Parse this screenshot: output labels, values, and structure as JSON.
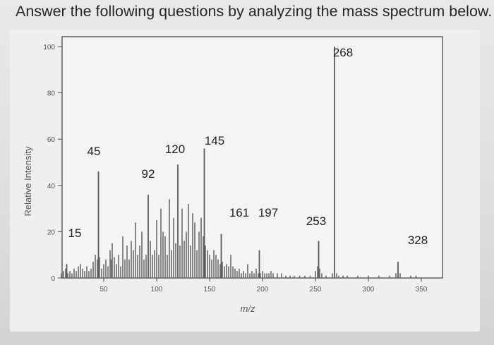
{
  "question": "Answer the following questions by analyzing the mass spectrum below.",
  "chart_data": {
    "type": "bar",
    "title": "",
    "xlabel": "m/z",
    "ylabel": "Relative Intensity",
    "xlim": [
      0,
      360
    ],
    "ylim": [
      0,
      100
    ],
    "x_ticks": [
      50,
      100,
      150,
      200,
      250,
      300,
      350
    ],
    "y_ticks": [
      0,
      20,
      40,
      60,
      80,
      100
    ],
    "labeled_peaks": [
      {
        "mz": 15,
        "label": "15",
        "intensity": 6
      },
      {
        "mz": 45,
        "label": "45",
        "intensity": 46
      },
      {
        "mz": 92,
        "label": "92",
        "intensity": 36
      },
      {
        "mz": 120,
        "label": "120",
        "intensity": 49
      },
      {
        "mz": 145,
        "label": "145",
        "intensity": 56
      },
      {
        "mz": 161,
        "label": "161",
        "intensity": 19
      },
      {
        "mz": 197,
        "label": "197",
        "intensity": 12
      },
      {
        "mz": 253,
        "label": "253",
        "intensity": 16
      },
      {
        "mz": 268,
        "label": "268",
        "intensity": 100
      },
      {
        "mz": 328,
        "label": "328",
        "intensity": 7
      }
    ],
    "minor_peaks": [
      [
        10,
        2
      ],
      [
        12,
        3
      ],
      [
        14,
        4
      ],
      [
        16,
        2
      ],
      [
        18,
        3
      ],
      [
        20,
        2
      ],
      [
        22,
        4
      ],
      [
        24,
        3
      ],
      [
        26,
        5
      ],
      [
        28,
        6
      ],
      [
        30,
        4
      ],
      [
        32,
        3
      ],
      [
        34,
        5
      ],
      [
        36,
        3
      ],
      [
        38,
        4
      ],
      [
        40,
        7
      ],
      [
        42,
        10
      ],
      [
        44,
        8
      ],
      [
        46,
        9
      ],
      [
        48,
        4
      ],
      [
        50,
        6
      ],
      [
        52,
        8
      ],
      [
        54,
        5
      ],
      [
        56,
        12
      ],
      [
        57,
        8
      ],
      [
        58,
        15
      ],
      [
        60,
        9
      ],
      [
        62,
        6
      ],
      [
        64,
        10
      ],
      [
        66,
        5
      ],
      [
        68,
        18
      ],
      [
        70,
        8
      ],
      [
        72,
        14
      ],
      [
        74,
        8
      ],
      [
        76,
        16
      ],
      [
        78,
        12
      ],
      [
        80,
        24
      ],
      [
        82,
        10
      ],
      [
        84,
        14
      ],
      [
        86,
        20
      ],
      [
        88,
        8
      ],
      [
        90,
        10
      ],
      [
        94,
        16
      ],
      [
        96,
        10
      ],
      [
        98,
        12
      ],
      [
        100,
        25
      ],
      [
        102,
        10
      ],
      [
        104,
        30
      ],
      [
        106,
        20
      ],
      [
        108,
        18
      ],
      [
        110,
        10
      ],
      [
        112,
        34
      ],
      [
        114,
        12
      ],
      [
        116,
        26
      ],
      [
        118,
        15
      ],
      [
        122,
        14
      ],
      [
        124,
        30
      ],
      [
        126,
        16
      ],
      [
        128,
        20
      ],
      [
        130,
        32
      ],
      [
        132,
        14
      ],
      [
        134,
        28
      ],
      [
        136,
        24
      ],
      [
        138,
        12
      ],
      [
        140,
        20
      ],
      [
        142,
        26
      ],
      [
        144,
        18
      ],
      [
        146,
        14
      ],
      [
        148,
        12
      ],
      [
        150,
        10
      ],
      [
        152,
        8
      ],
      [
        154,
        12
      ],
      [
        156,
        10
      ],
      [
        158,
        8
      ],
      [
        160,
        6
      ],
      [
        162,
        7
      ],
      [
        164,
        5
      ],
      [
        166,
        6
      ],
      [
        168,
        5
      ],
      [
        170,
        10
      ],
      [
        172,
        5
      ],
      [
        174,
        4
      ],
      [
        176,
        3
      ],
      [
        178,
        4
      ],
      [
        180,
        2
      ],
      [
        182,
        3
      ],
      [
        184,
        2
      ],
      [
        186,
        6
      ],
      [
        188,
        2
      ],
      [
        190,
        3
      ],
      [
        192,
        2
      ],
      [
        194,
        4
      ],
      [
        196,
        2
      ],
      [
        198,
        2
      ],
      [
        200,
        3
      ],
      [
        202,
        2
      ],
      [
        204,
        2
      ],
      [
        206,
        2
      ],
      [
        208,
        3
      ],
      [
        210,
        2
      ],
      [
        214,
        2
      ],
      [
        218,
        2
      ],
      [
        222,
        1
      ],
      [
        226,
        1
      ],
      [
        230,
        1
      ],
      [
        235,
        1
      ],
      [
        240,
        1
      ],
      [
        245,
        1
      ],
      [
        250,
        3
      ],
      [
        252,
        5
      ],
      [
        254,
        4
      ],
      [
        256,
        2
      ],
      [
        260,
        1
      ],
      [
        266,
        2
      ],
      [
        270,
        2
      ],
      [
        272,
        1
      ],
      [
        276,
        1
      ],
      [
        280,
        1
      ],
      [
        290,
        1
      ],
      [
        300,
        1
      ],
      [
        310,
        1
      ],
      [
        320,
        1
      ],
      [
        326,
        2
      ],
      [
        330,
        2
      ],
      [
        340,
        1
      ],
      [
        345,
        1
      ]
    ]
  }
}
